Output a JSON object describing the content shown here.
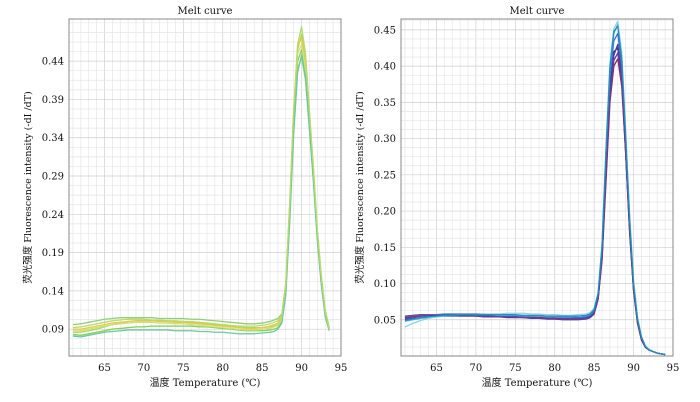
{
  "chart_data": [
    {
      "type": "line",
      "title": "Melt curve",
      "xlabel": "温度 Temperature (℃)",
      "ylabel": "荧光强度 Fluorescence intensity (-dI /dT)",
      "xlim": [
        60.5,
        95
      ],
      "ylim": [
        0.055,
        0.495
      ],
      "xticks": [
        65,
        70,
        75,
        80,
        85,
        90,
        95
      ],
      "yticks": [
        0.09,
        0.14,
        0.19,
        0.24,
        0.29,
        0.34,
        0.39,
        0.44
      ],
      "grid": true,
      "x": [
        61,
        62,
        63,
        64,
        65,
        66,
        67,
        68,
        69,
        70,
        71,
        72,
        73,
        74,
        75,
        76,
        77,
        78,
        79,
        80,
        81,
        82,
        83,
        84,
        85,
        86,
        86.5,
        87,
        87.5,
        88,
        88.5,
        89,
        89.5,
        90,
        90.5,
        91,
        91.5,
        92,
        92.5,
        93,
        93.5
      ],
      "series": [
        {
          "color": "#7fcf5a",
          "values": [
            0.083,
            0.082,
            0.084,
            0.086,
            0.088,
            0.09,
            0.091,
            0.092,
            0.093,
            0.093,
            0.094,
            0.094,
            0.094,
            0.094,
            0.094,
            0.094,
            0.093,
            0.093,
            0.092,
            0.091,
            0.09,
            0.089,
            0.088,
            0.088,
            0.088,
            0.089,
            0.09,
            0.092,
            0.1,
            0.14,
            0.24,
            0.36,
            0.44,
            0.455,
            0.43,
            0.36,
            0.29,
            0.21,
            0.15,
            0.11,
            0.09
          ]
        },
        {
          "color": "#a6d95b",
          "values": [
            0.086,
            0.086,
            0.088,
            0.09,
            0.093,
            0.096,
            0.098,
            0.1,
            0.101,
            0.101,
            0.101,
            0.101,
            0.1,
            0.1,
            0.1,
            0.099,
            0.098,
            0.097,
            0.096,
            0.095,
            0.094,
            0.093,
            0.092,
            0.092,
            0.092,
            0.093,
            0.094,
            0.096,
            0.104,
            0.145,
            0.25,
            0.37,
            0.455,
            0.475,
            0.44,
            0.37,
            0.3,
            0.22,
            0.16,
            0.115,
            0.092
          ]
        },
        {
          "color": "#e6c84a",
          "values": [
            0.09,
            0.09,
            0.092,
            0.094,
            0.096,
            0.098,
            0.099,
            0.1,
            0.101,
            0.101,
            0.101,
            0.1,
            0.1,
            0.099,
            0.099,
            0.098,
            0.097,
            0.096,
            0.095,
            0.094,
            0.093,
            0.092,
            0.091,
            0.091,
            0.092,
            0.094,
            0.096,
            0.098,
            0.106,
            0.15,
            0.255,
            0.375,
            0.46,
            0.47,
            0.435,
            0.365,
            0.295,
            0.215,
            0.155,
            0.112,
            0.092
          ]
        },
        {
          "color": "#cfe07a",
          "values": [
            0.088,
            0.088,
            0.09,
            0.092,
            0.094,
            0.096,
            0.097,
            0.098,
            0.099,
            0.099,
            0.099,
            0.098,
            0.098,
            0.097,
            0.097,
            0.096,
            0.095,
            0.094,
            0.093,
            0.092,
            0.091,
            0.09,
            0.089,
            0.089,
            0.09,
            0.091,
            0.093,
            0.095,
            0.102,
            0.142,
            0.245,
            0.368,
            0.45,
            0.462,
            0.428,
            0.358,
            0.288,
            0.208,
            0.15,
            0.108,
            0.09
          ]
        },
        {
          "color": "#8fcf7a",
          "values": [
            0.096,
            0.097,
            0.099,
            0.101,
            0.103,
            0.104,
            0.105,
            0.105,
            0.105,
            0.105,
            0.105,
            0.104,
            0.104,
            0.104,
            0.104,
            0.103,
            0.103,
            0.102,
            0.101,
            0.1,
            0.099,
            0.098,
            0.097,
            0.097,
            0.098,
            0.1,
            0.102,
            0.104,
            0.11,
            0.15,
            0.25,
            0.36,
            0.43,
            0.445,
            0.415,
            0.35,
            0.285,
            0.21,
            0.155,
            0.112,
            0.093
          ]
        },
        {
          "color": "#6fc7a0",
          "values": [
            0.081,
            0.08,
            0.082,
            0.084,
            0.086,
            0.087,
            0.088,
            0.089,
            0.089,
            0.089,
            0.089,
            0.089,
            0.089,
            0.088,
            0.088,
            0.088,
            0.087,
            0.087,
            0.086,
            0.086,
            0.085,
            0.084,
            0.084,
            0.084,
            0.085,
            0.086,
            0.087,
            0.09,
            0.098,
            0.135,
            0.23,
            0.345,
            0.425,
            0.448,
            0.42,
            0.352,
            0.282,
            0.205,
            0.148,
            0.106,
            0.088
          ]
        },
        {
          "color": "#b9d96a",
          "values": [
            0.092,
            0.093,
            0.095,
            0.097,
            0.099,
            0.101,
            0.102,
            0.103,
            0.103,
            0.103,
            0.102,
            0.102,
            0.101,
            0.101,
            0.1,
            0.1,
            0.099,
            0.098,
            0.097,
            0.096,
            0.095,
            0.094,
            0.094,
            0.094,
            0.095,
            0.097,
            0.099,
            0.101,
            0.108,
            0.15,
            0.255,
            0.378,
            0.462,
            0.485,
            0.45,
            0.375,
            0.3,
            0.218,
            0.158,
            0.113,
            0.091
          ]
        }
      ]
    },
    {
      "type": "line",
      "title": "Melt curve",
      "xlabel": "温度 Temperature (℃)",
      "ylabel": "荧光强度 Fluorescence intensity (-dI /dT)",
      "xlim": [
        60.5,
        95
      ],
      "ylim": [
        0.0,
        0.465
      ],
      "xticks": [
        65,
        70,
        75,
        80,
        85,
        90,
        95
      ],
      "yticks": [
        0.05,
        0.1,
        0.15,
        0.2,
        0.25,
        0.3,
        0.35,
        0.4,
        0.45
      ],
      "ytick_labels": [
        "0.05",
        "0.10",
        "0.15",
        "0.20",
        "0.25",
        "0.30",
        "0.35",
        "0.40",
        "0.45"
      ],
      "grid": true,
      "x": [
        61,
        62,
        63,
        64,
        65,
        66,
        67,
        68,
        69,
        70,
        71,
        72,
        73,
        74,
        75,
        76,
        77,
        78,
        79,
        80,
        81,
        82,
        83,
        84,
        84.5,
        85,
        85.5,
        86,
        86.5,
        87,
        87.5,
        88,
        88.5,
        89,
        89.5,
        90,
        90.5,
        91,
        91.5,
        92,
        93,
        94
      ],
      "series": [
        {
          "color": "#2a2f8a",
          "values": [
            0.052,
            0.054,
            0.055,
            0.056,
            0.056,
            0.056,
            0.056,
            0.056,
            0.056,
            0.056,
            0.055,
            0.055,
            0.055,
            0.054,
            0.054,
            0.054,
            0.053,
            0.053,
            0.052,
            0.052,
            0.051,
            0.051,
            0.051,
            0.052,
            0.054,
            0.06,
            0.08,
            0.14,
            0.26,
            0.37,
            0.42,
            0.425,
            0.38,
            0.28,
            0.17,
            0.09,
            0.045,
            0.022,
            0.012,
            0.008,
            0.004,
            0.002
          ]
        },
        {
          "color": "#4b3fa0",
          "values": [
            0.05,
            0.052,
            0.053,
            0.054,
            0.055,
            0.055,
            0.055,
            0.055,
            0.055,
            0.055,
            0.054,
            0.054,
            0.054,
            0.053,
            0.053,
            0.053,
            0.052,
            0.052,
            0.051,
            0.051,
            0.05,
            0.05,
            0.05,
            0.051,
            0.053,
            0.058,
            0.078,
            0.135,
            0.25,
            0.36,
            0.415,
            0.43,
            0.39,
            0.29,
            0.18,
            0.095,
            0.048,
            0.024,
            0.013,
            0.008,
            0.004,
            0.002
          ]
        },
        {
          "color": "#8a2a5a",
          "values": [
            0.055,
            0.056,
            0.057,
            0.057,
            0.057,
            0.057,
            0.057,
            0.057,
            0.057,
            0.056,
            0.056,
            0.056,
            0.055,
            0.055,
            0.055,
            0.054,
            0.054,
            0.053,
            0.053,
            0.052,
            0.052,
            0.052,
            0.052,
            0.053,
            0.055,
            0.06,
            0.079,
            0.132,
            0.24,
            0.35,
            0.4,
            0.41,
            0.372,
            0.278,
            0.172,
            0.09,
            0.046,
            0.023,
            0.012,
            0.008,
            0.004,
            0.002
          ]
        },
        {
          "color": "#3a6fd0",
          "values": [
            0.054,
            0.055,
            0.056,
            0.057,
            0.057,
            0.058,
            0.058,
            0.058,
            0.058,
            0.058,
            0.058,
            0.057,
            0.057,
            0.057,
            0.056,
            0.056,
            0.055,
            0.055,
            0.054,
            0.054,
            0.053,
            0.053,
            0.053,
            0.054,
            0.056,
            0.062,
            0.082,
            0.145,
            0.27,
            0.385,
            0.435,
            0.445,
            0.4,
            0.298,
            0.185,
            0.098,
            0.05,
            0.025,
            0.013,
            0.008,
            0.004,
            0.002
          ]
        },
        {
          "color": "#5aa9e0",
          "values": [
            0.048,
            0.05,
            0.052,
            0.053,
            0.054,
            0.055,
            0.055,
            0.056,
            0.056,
            0.056,
            0.056,
            0.056,
            0.056,
            0.056,
            0.056,
            0.055,
            0.055,
            0.055,
            0.054,
            0.054,
            0.054,
            0.054,
            0.055,
            0.056,
            0.058,
            0.064,
            0.085,
            0.15,
            0.28,
            0.395,
            0.445,
            0.458,
            0.412,
            0.305,
            0.19,
            0.1,
            0.052,
            0.026,
            0.014,
            0.008,
            0.004,
            0.002
          ]
        },
        {
          "color": "#8ed0e8",
          "values": [
            0.04,
            0.045,
            0.049,
            0.052,
            0.054,
            0.055,
            0.056,
            0.057,
            0.057,
            0.057,
            0.058,
            0.058,
            0.058,
            0.059,
            0.059,
            0.059,
            0.058,
            0.058,
            0.057,
            0.057,
            0.056,
            0.056,
            0.057,
            0.058,
            0.06,
            0.066,
            0.088,
            0.155,
            0.29,
            0.405,
            0.452,
            0.462,
            0.418,
            0.31,
            0.195,
            0.104,
            0.054,
            0.027,
            0.014,
            0.009,
            0.004,
            0.002
          ]
        },
        {
          "color": "#6a3a9a",
          "values": [
            0.053,
            0.054,
            0.055,
            0.056,
            0.056,
            0.056,
            0.056,
            0.056,
            0.056,
            0.055,
            0.055,
            0.055,
            0.054,
            0.054,
            0.054,
            0.053,
            0.053,
            0.052,
            0.052,
            0.051,
            0.051,
            0.051,
            0.051,
            0.052,
            0.054,
            0.059,
            0.079,
            0.136,
            0.248,
            0.358,
            0.408,
            0.418,
            0.378,
            0.282,
            0.176,
            0.092,
            0.047,
            0.023,
            0.012,
            0.008,
            0.004,
            0.002
          ]
        },
        {
          "color": "#1f8fb8",
          "values": [
            0.049,
            0.051,
            0.053,
            0.054,
            0.055,
            0.056,
            0.056,
            0.057,
            0.057,
            0.057,
            0.057,
            0.057,
            0.057,
            0.057,
            0.057,
            0.056,
            0.056,
            0.056,
            0.055,
            0.055,
            0.055,
            0.055,
            0.055,
            0.056,
            0.058,
            0.064,
            0.086,
            0.152,
            0.282,
            0.398,
            0.448,
            0.455,
            0.41,
            0.302,
            0.188,
            0.099,
            0.051,
            0.026,
            0.013,
            0.008,
            0.004,
            0.002
          ]
        }
      ]
    }
  ]
}
